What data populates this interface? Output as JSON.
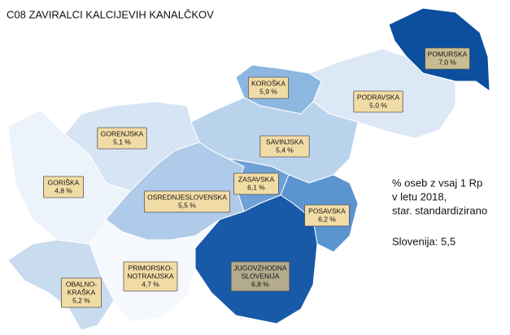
{
  "chart_data": {
    "type": "choropleth",
    "title": "C08 ZAVIRALCI KALCIJEVIH KANALČKOV",
    "regions": [
      {
        "name": [
          "POMURSKA"
        ],
        "value": 7.0,
        "value_label": "7,0 %",
        "color": "#0b4f9e",
        "label_color": "#c8bc90"
      },
      {
        "name": [
          "KOROŠKA"
        ],
        "value": 5.9,
        "value_label": "5,9 %",
        "color": "#8db6e0",
        "label_color": "#f2dca6"
      },
      {
        "name": [
          "PODRAVSKA"
        ],
        "value": 5.0,
        "value_label": "5,0 %",
        "color": "#dce8f6",
        "label_color": "#f2dca6"
      },
      {
        "name": [
          "GORENJSKA"
        ],
        "value": 5.1,
        "value_label": "5,1 %",
        "color": "#d6e4f4",
        "label_color": "#f2dca6"
      },
      {
        "name": [
          "SAVINJSKA"
        ],
        "value": 5.4,
        "value_label": "5,4 %",
        "color": "#bad3ed",
        "label_color": "#f2dca6"
      },
      {
        "name": [
          "GORIŠKA"
        ],
        "value": 4.8,
        "value_label": "4,8 %",
        "color": "#edf3fb",
        "label_color": "#f2dca6"
      },
      {
        "name": [
          "ZASAVSKA"
        ],
        "value": 6.1,
        "value_label": "6,1 %",
        "color": "#6ea0d5",
        "label_color": "#f2dca6"
      },
      {
        "name": [
          "OSREDNJESLOVENSKA"
        ],
        "value": 5.5,
        "value_label": "5,5 %",
        "color": "#b0cbe9",
        "label_color": "#f2dca6"
      },
      {
        "name": [
          "POSAVSKA"
        ],
        "value": 6.2,
        "value_label": "6,2 %",
        "color": "#5b94cf",
        "label_color": "#f2dca6"
      },
      {
        "name": [
          "JUGOVZHODNA",
          "SLOVENIJA"
        ],
        "value": 6.8,
        "value_label": "6,8 %",
        "color": "#185aa8",
        "label_color": "#b3ab8c"
      },
      {
        "name": [
          "PRIMORSKO-",
          "NOTRANJSKA"
        ],
        "value": 4.7,
        "value_label": "4,7 %",
        "color": "#f5f8fc",
        "label_color": "#f2dca6"
      },
      {
        "name": [
          "OBALNO-",
          "KRAŠKA"
        ],
        "value": 5.2,
        "value_label": "5,2 %",
        "color": "#c9dbef",
        "label_color": "#f2dca6"
      }
    ],
    "legend": [
      "% oseb z vsaj 1 Rp",
      "v letu 2018,",
      "star. standardizirano"
    ],
    "note": "Slovenija: 5,5"
  }
}
